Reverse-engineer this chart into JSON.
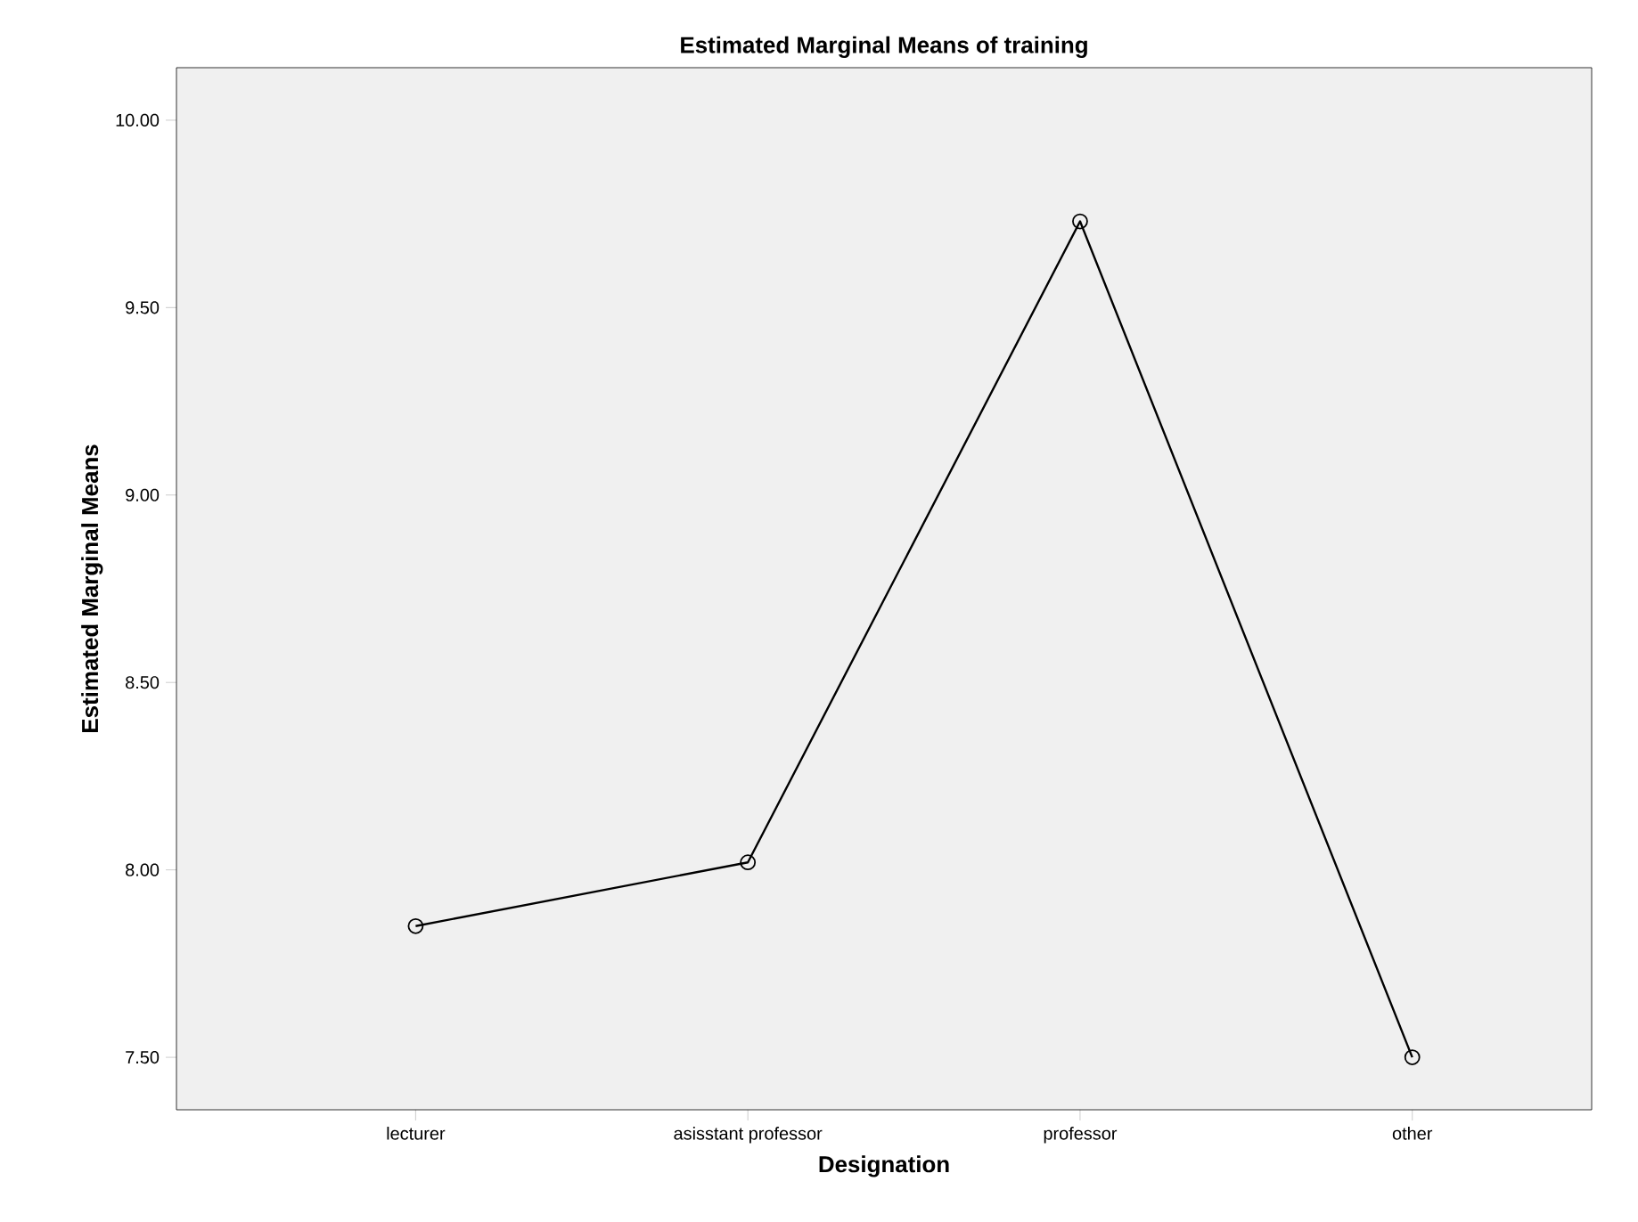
{
  "chart_data": {
    "type": "line",
    "title": "Estimated Marginal Means of training",
    "xlabel": "Designation",
    "ylabel": "Estimated Marginal Means",
    "categories": [
      "lecturer",
      "asisstant professor",
      "professor",
      "other"
    ],
    "series": [
      {
        "color": "#000000",
        "values": [
          7.85,
          8.02,
          9.73,
          7.5
        ]
      }
    ],
    "ylim": [
      7.36,
      10.14
    ],
    "yticks": [
      {
        "value": 7.5,
        "label": "7.50"
      },
      {
        "value": 8,
        "label": "8.00"
      },
      {
        "value": 8.5,
        "label": "8.50"
      },
      {
        "value": 9,
        "label": "9.00"
      },
      {
        "value": 9.5,
        "label": "9.50"
      },
      {
        "value": 10,
        "label": "10.00"
      }
    ],
    "marker": "circle",
    "line_style": "solid",
    "grid": false
  }
}
